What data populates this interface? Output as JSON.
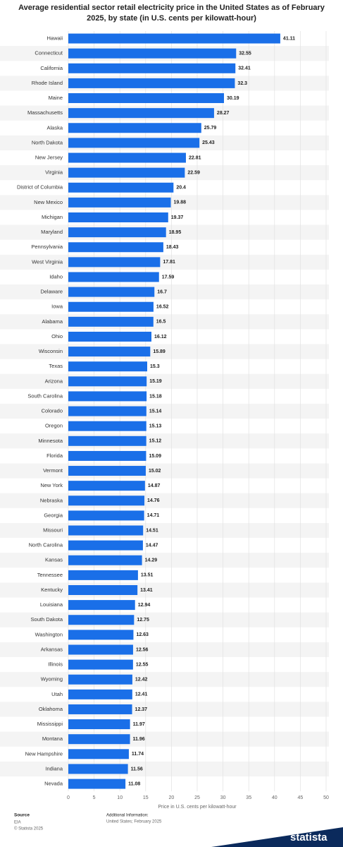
{
  "chart_data": {
    "type": "bar",
    "orientation": "horizontal",
    "title": "Average residential sector retail electricity price in the United States as of February 2025, by state (in U.S. cents per kilowatt-hour)",
    "categories": [
      "Hawaii",
      "Connecticut",
      "California",
      "Rhode Island",
      "Maine",
      "Massachusetts",
      "Alaska",
      "North Dakota",
      "New Jersey",
      "Virginia",
      "District of Columbia",
      "New Mexico",
      "Michigan",
      "Maryland",
      "Pennsylvania",
      "West Virginia",
      "Idaho",
      "Delaware",
      "Iowa",
      "Alabama",
      "Ohio",
      "Wisconsin",
      "Texas",
      "Arizona",
      "South Carolina",
      "Colorado",
      "Oregon",
      "Minnesota",
      "Florida",
      "Vermont",
      "New York",
      "Nebraska",
      "Georgia",
      "Missouri",
      "North Carolina",
      "Kansas",
      "Tennessee",
      "Kentucky",
      "Louisiana",
      "South Dakota",
      "Washington",
      "Arkansas",
      "Illinois",
      "Wyoming",
      "Utah",
      "Oklahoma",
      "Mississippi",
      "Montana",
      "New Hampshire",
      "Indiana",
      "Nevada"
    ],
    "values": [
      41.11,
      32.55,
      32.41,
      32.3,
      30.19,
      28.27,
      25.79,
      25.43,
      22.81,
      22.59,
      20.4,
      19.88,
      19.37,
      18.95,
      18.43,
      17.81,
      17.59,
      16.7,
      16.52,
      16.5,
      16.12,
      15.89,
      15.3,
      15.19,
      15.18,
      15.14,
      15.13,
      15.12,
      15.09,
      15.02,
      14.87,
      14.76,
      14.71,
      14.51,
      14.47,
      14.29,
      13.51,
      13.41,
      12.94,
      12.75,
      12.63,
      12.56,
      12.55,
      12.42,
      12.41,
      12.37,
      11.97,
      11.96,
      11.74,
      11.56,
      11.08
    ],
    "color": "#1a6fe8",
    "xlim": [
      0,
      50
    ],
    "xticks": [
      0,
      5,
      10,
      15,
      20,
      25,
      30,
      35,
      40,
      45,
      50
    ],
    "xlabel": "Price in U.S. cents per kilowatt-hour",
    "grid": true
  },
  "footer": {
    "source_label": "Source",
    "source": "EIA",
    "copyright": "© Statista 2025",
    "additional_label": "Additional Information:",
    "additional": "United States; February 2025",
    "logo": "statista"
  }
}
